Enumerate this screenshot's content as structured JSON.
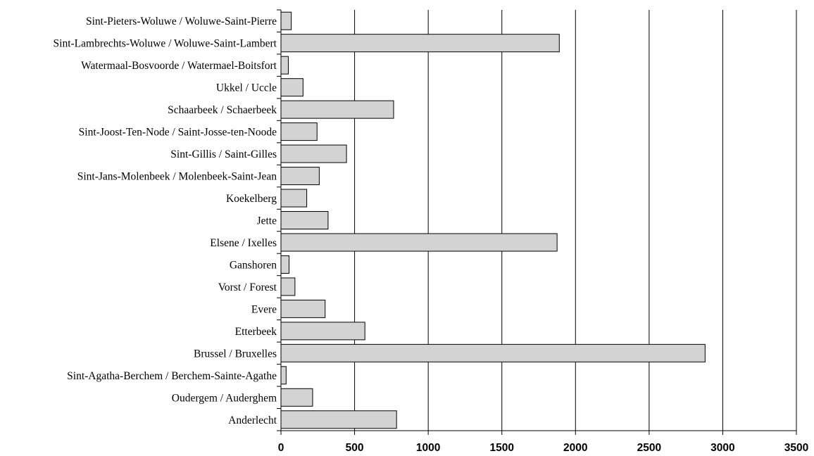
{
  "chart_data": {
    "type": "bar",
    "orientation": "horizontal",
    "categories": [
      "Sint-Pieters-Woluwe / Woluwe-Saint-Pierre",
      "Sint-Lambrechts-Woluwe / Woluwe-Saint-Lambert",
      "Watermaal-Bosvoorde / Watermael-Boitsfort",
      "Ukkel / Uccle",
      "Schaarbeek / Schaerbeek",
      "Sint-Joost-Ten-Node / Saint-Josse-ten-Noode",
      "Sint-Gillis / Saint-Gilles",
      "Sint-Jans-Molenbeek / Molenbeek-Saint-Jean",
      "Koekelberg",
      "Jette",
      "Elsene / Ixelles",
      "Ganshoren",
      "Vorst / Forest",
      "Evere",
      "Etterbeek",
      "Brussel / Bruxelles",
      "Sint-Agatha-Berchem / Berchem-Sainte-Agathe",
      "Oudergem / Auderghem",
      "Anderlecht"
    ],
    "values": [
      70,
      1890,
      50,
      150,
      765,
      245,
      445,
      260,
      175,
      320,
      1875,
      55,
      95,
      300,
      570,
      2880,
      35,
      215,
      785
    ],
    "xlim": [
      0,
      3500
    ],
    "xticks": [
      0,
      500,
      1000,
      1500,
      2000,
      2500,
      3000,
      3500
    ],
    "xtick_labels": [
      "0",
      "500",
      "1000",
      "1500",
      "2000",
      "2500",
      "3000",
      "3500"
    ],
    "title": "",
    "xlabel": "",
    "ylabel": "",
    "grid": "vertical",
    "legend": "none",
    "bar_color": "#d3d3d3",
    "bar_edge_color": "#000000"
  }
}
